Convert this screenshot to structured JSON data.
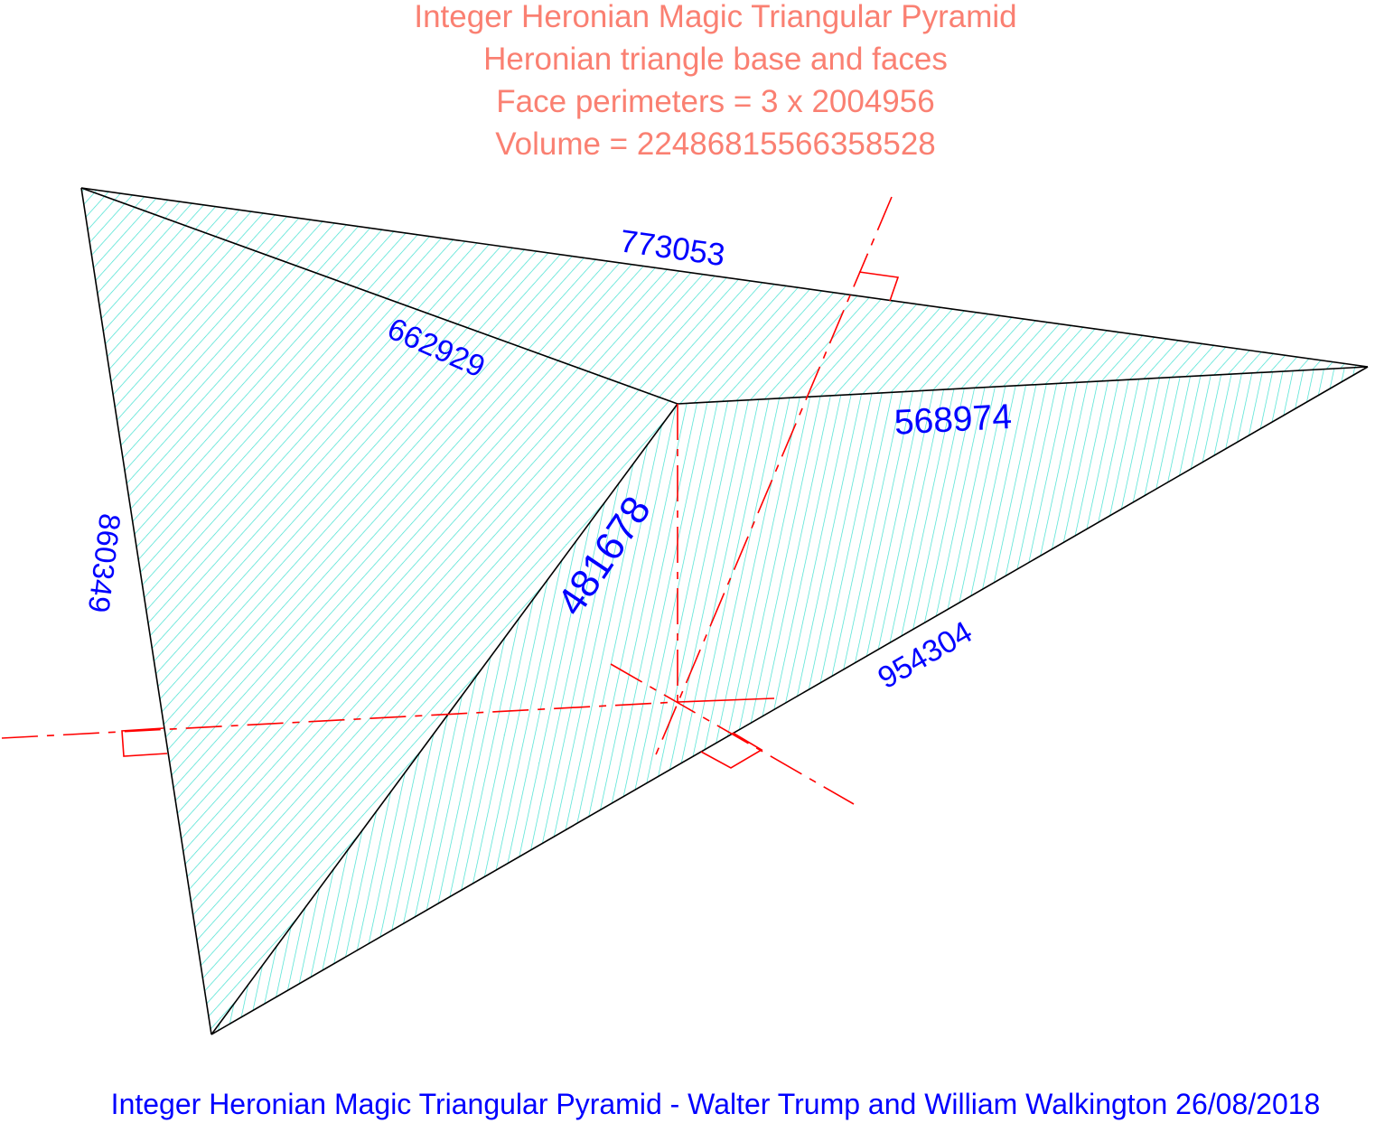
{
  "title_lines": [
    "Integer Heronian Magic Triangular Pyramid",
    "Heronian triangle base and faces",
    "Face perimeters = 3 x 2004956",
    "Volume = 22486815566358528"
  ],
  "edge_labels": {
    "top_edge": "773053",
    "upper_left_inner_edge": "662929",
    "left_edge": "860349",
    "inner_right_edge": "568974",
    "inner_center_edge": "481678",
    "lower_right_edge": "954304"
  },
  "footer": "Integer Heronian Magic Triangular Pyramid - Walter Trump and William Walkington 26/08/2018",
  "colors": {
    "title": "#fa8072",
    "labels": "#0000ff",
    "edges": "#000000",
    "hatch": "#40e0d0",
    "construction": "#ff0000",
    "background": "#ffffff"
  }
}
